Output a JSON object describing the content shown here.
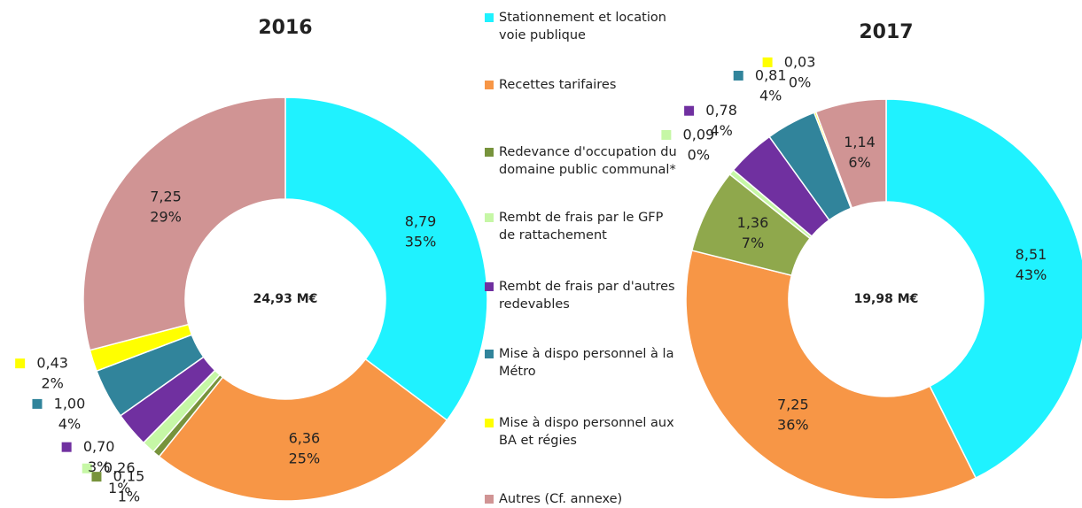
{
  "chart_data": [
    {
      "type": "donut",
      "title": "2016",
      "center_label": "24,93 M€",
      "categories": [
        "Stationnement et location voie publique",
        "Recettes tarifaires",
        "Redevance d'occupation du domaine public communal*",
        "Rembt de frais par le GFP de rattachement",
        "Rembt de frais par d'autres redevables",
        "Mise à dispo personnel à la Métro",
        "Mise à dispo personnel aux BA et régies",
        "Autres (Cf. annexe)"
      ],
      "values": [
        8.79,
        6.36,
        0.15,
        0.26,
        0.7,
        1.0,
        0.43,
        7.25
      ],
      "value_labels": [
        "8,79",
        "6,36",
        "0,15",
        "0,26",
        "0,70",
        "1,00",
        "0,43",
        "7,25"
      ],
      "percents": [
        35,
        25,
        1,
        1,
        3,
        4,
        2,
        29
      ],
      "percent_labels": [
        "35%",
        "25%",
        "1%",
        "1%",
        "3%",
        "4%",
        "2%",
        "29%"
      ],
      "colors": [
        "#1ff2ff",
        "#f79646",
        "#77933c",
        "#c6f7a6",
        "#7030a0",
        "#31849b",
        "#ffff00",
        "#d09494"
      ]
    },
    {
      "type": "donut",
      "title": "2017",
      "center_label": "19,98 M€",
      "categories": [
        "Stationnement et location voie publique",
        "Recettes tarifaires",
        "Redevance d'occupation du domaine public communal*",
        "Rembt de frais par le GFP de rattachement",
        "Rembt de frais par d'autres redevables",
        "Mise à dispo personnel à la Métro",
        "Mise à dispo personnel aux BA et régies",
        "Autres (Cf. annexe)"
      ],
      "values": [
        8.51,
        7.25,
        1.36,
        0.09,
        0.78,
        0.81,
        0.03,
        1.14
      ],
      "value_labels": [
        "8,51",
        "7,25",
        "1,36",
        "0,09",
        "0,78",
        "0,81",
        "0,03",
        "1,14"
      ],
      "percents": [
        43,
        36,
        7,
        0,
        4,
        4,
        0,
        6
      ],
      "percent_labels": [
        "43%",
        "36%",
        "7%",
        "0%",
        "4%",
        "4%",
        "0%",
        "6%"
      ],
      "colors": [
        "#1ff2ff",
        "#f79646",
        "#8fa84c",
        "#c6f7a6",
        "#7030a0",
        "#31849b",
        "#ffff00",
        "#d09494"
      ]
    }
  ]
}
